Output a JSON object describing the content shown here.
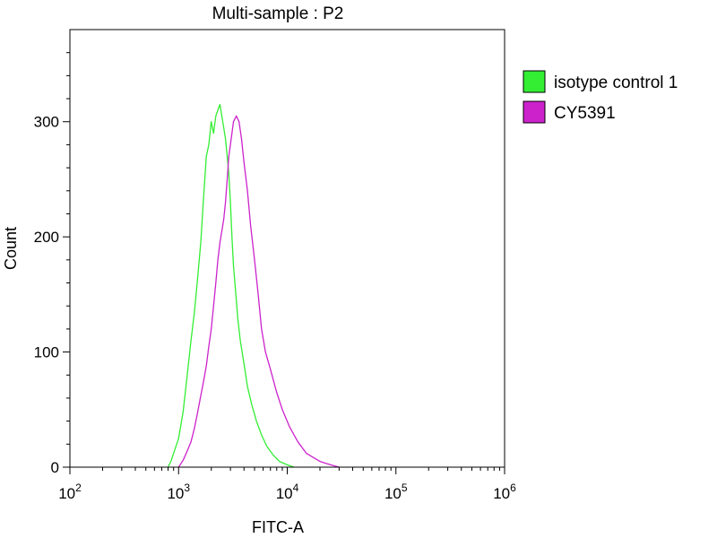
{
  "chart_data": {
    "type": "line",
    "title": "Multi-sample : P2",
    "xlabel": "FITC-A",
    "ylabel": "Count",
    "xscale": "log",
    "xlim": [
      100,
      1000000
    ],
    "ylim": [
      0,
      380
    ],
    "x_ticks": [
      {
        "base": "10",
        "exp": "2",
        "value": 100
      },
      {
        "base": "10",
        "exp": "3",
        "value": 1000
      },
      {
        "base": "10",
        "exp": "4",
        "value": 10000
      },
      {
        "base": "10",
        "exp": "5",
        "value": 100000
      },
      {
        "base": "10",
        "exp": "6",
        "value": 1000000
      }
    ],
    "y_ticks": [
      {
        "label": "0",
        "value": 0
      },
      {
        "label": "100",
        "value": 100
      },
      {
        "label": "200",
        "value": 200
      },
      {
        "label": "300",
        "value": 300
      }
    ],
    "grid": false,
    "legend_position": "right",
    "series": [
      {
        "name": "isotype control 1",
        "color": "#33ee33",
        "x": [
          800,
          850,
          900,
          1000,
          1100,
          1200,
          1300,
          1400,
          1500,
          1600,
          1700,
          1800,
          1900,
          2000,
          2100,
          2200,
          2300,
          2400,
          2500,
          2600,
          2700,
          2800,
          2900,
          3000,
          3100,
          3200,
          3300,
          3400,
          3500,
          3700,
          4000,
          4300,
          4700,
          5200,
          5800,
          6500,
          7500,
          8500,
          10000,
          11500
        ],
        "y": [
          0,
          5,
          12,
          25,
          48,
          80,
          110,
          135,
          165,
          195,
          235,
          270,
          280,
          300,
          290,
          305,
          310,
          315,
          305,
          295,
          285,
          270,
          255,
          230,
          200,
          175,
          160,
          145,
          130,
          110,
          90,
          70,
          55,
          40,
          28,
          18,
          10,
          5,
          2,
          0
        ]
      },
      {
        "name": "CY5391",
        "color": "#cc22cc",
        "x": [
          1000,
          1100,
          1200,
          1300,
          1400,
          1500,
          1600,
          1700,
          1800,
          1900,
          2000,
          2100,
          2200,
          2300,
          2400,
          2500,
          2600,
          2700,
          2800,
          2900,
          3000,
          3200,
          3400,
          3600,
          3800,
          4000,
          4300,
          4600,
          5000,
          5400,
          5800,
          6300,
          7000,
          8000,
          9000,
          10500,
          12500,
          15000,
          20000,
          25000,
          30000
        ],
        "y": [
          0,
          6,
          14,
          22,
          34,
          48,
          62,
          75,
          88,
          105,
          120,
          140,
          160,
          180,
          195,
          205,
          215,
          230,
          250,
          270,
          280,
          300,
          305,
          300,
          285,
          265,
          240,
          210,
          180,
          150,
          120,
          100,
          85,
          65,
          50,
          35,
          22,
          12,
          5,
          2,
          0
        ]
      }
    ]
  }
}
